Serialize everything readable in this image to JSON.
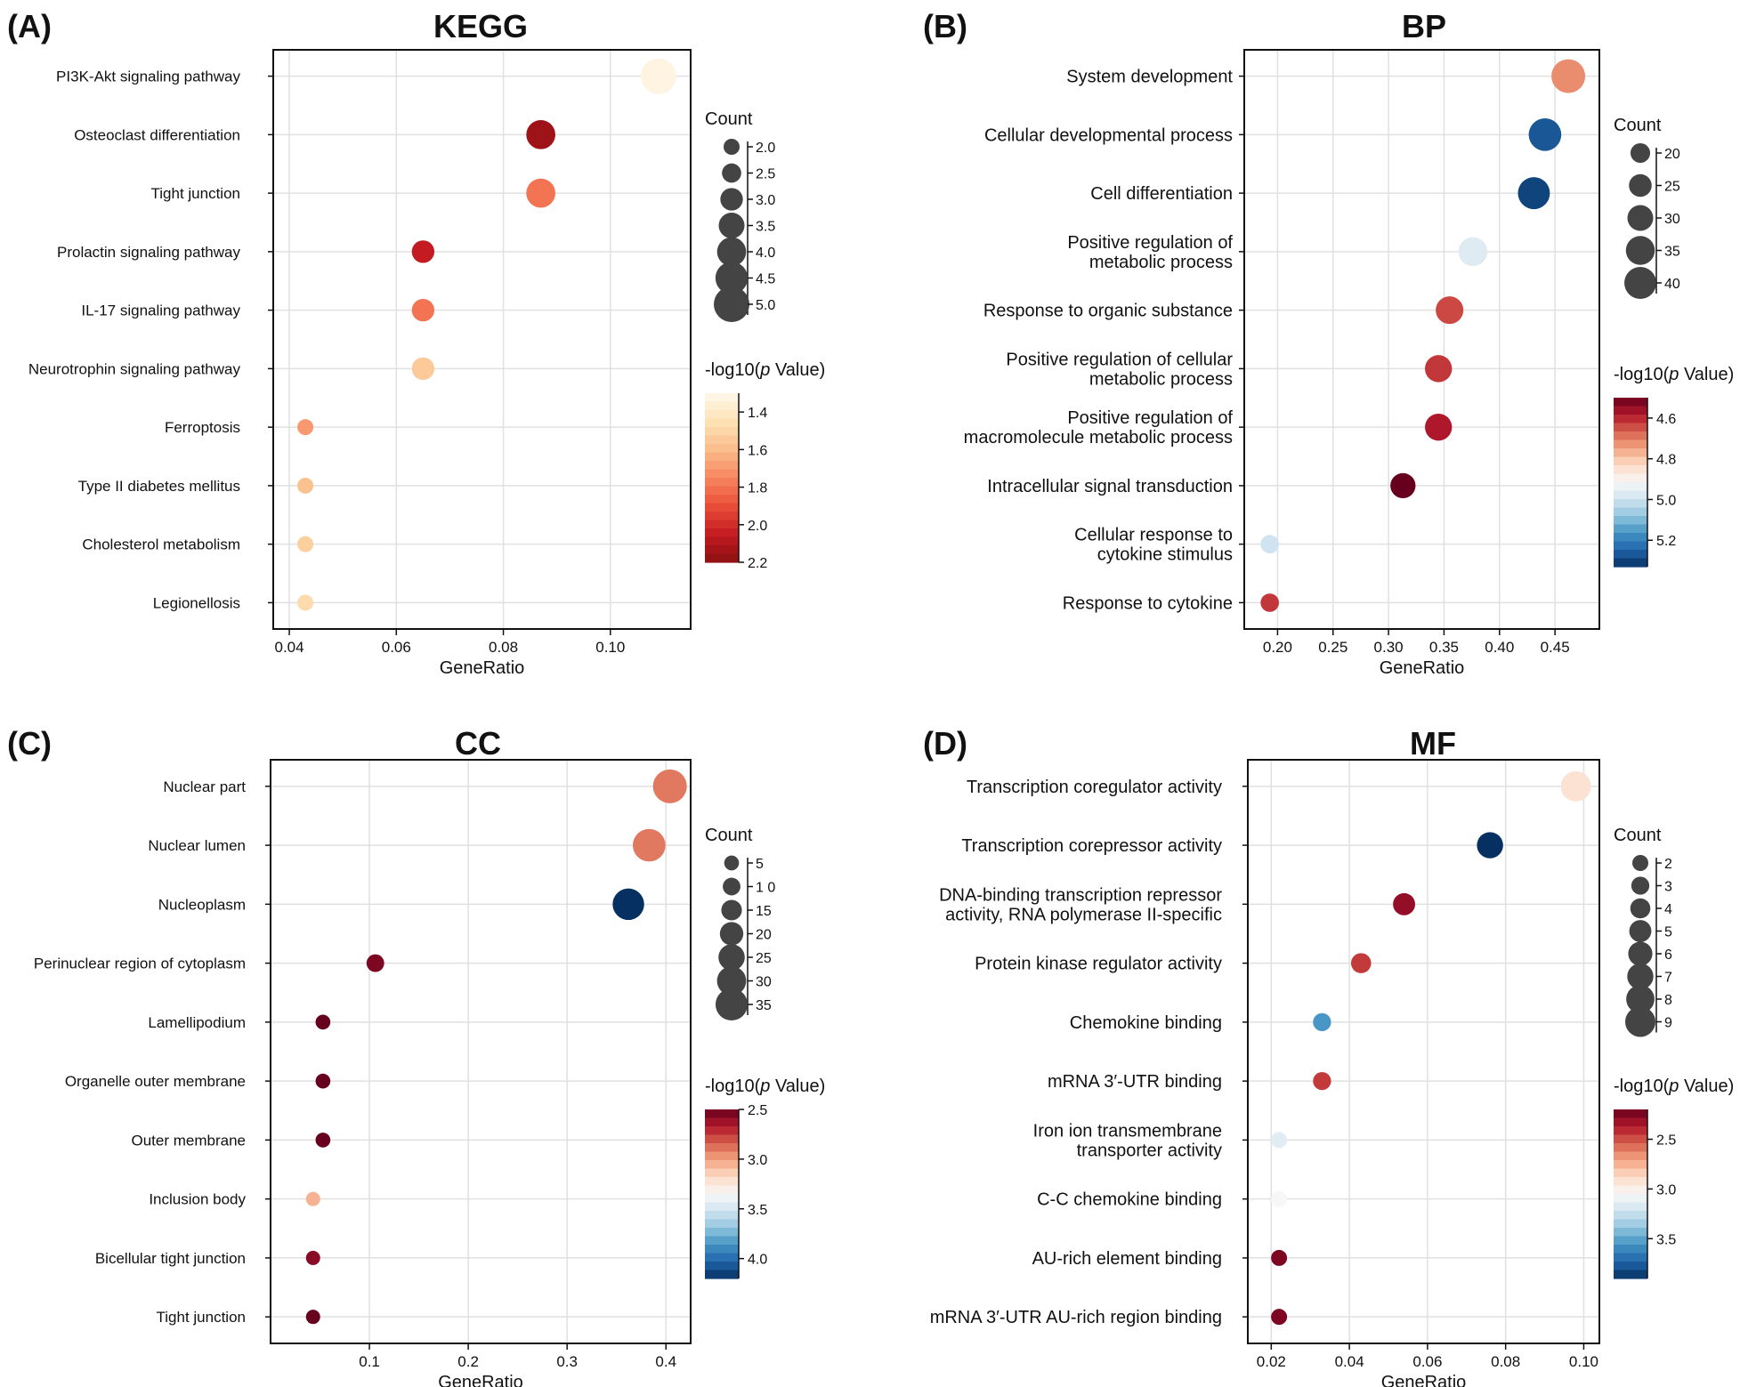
{
  "colors": {
    "diverging": [
      "#67001f",
      "#b2182b",
      "#d6604d",
      "#f4a582",
      "#fddbc7",
      "#f7f7f7",
      "#d1e5f0",
      "#92c5de",
      "#4393c3",
      "#2166ac",
      "#053061"
    ],
    "sequential": [
      "#fff8ec",
      "#fde3b5",
      "#fbbd8b",
      "#f6865f",
      "#ea4f37",
      "#c41b22",
      "#8b0f12"
    ],
    "bubble": "#444444"
  },
  "chart_data": [
    {
      "panel_label": "(A)",
      "type": "scatter",
      "title": "KEGG",
      "xlabel": "GeneRatio",
      "xlim": [
        0.037,
        0.115
      ],
      "xticks": [
        0.04,
        0.06,
        0.08,
        0.1
      ],
      "xtick_labels": [
        "0.04",
        "0.06",
        "0.08",
        "0.10"
      ],
      "size_title": "Count",
      "size_domain": [
        2,
        5
      ],
      "size_ticks": [
        2.0,
        2.5,
        3.0,
        3.5,
        4.0,
        4.5,
        5.0
      ],
      "size_tick_labels": [
        "2.0",
        "2.5",
        "3.0",
        "3.5",
        "4.0",
        "4.5",
        "5.0"
      ],
      "color_title_prefix": "-log10(",
      "color_title_italic": "p",
      "color_title_suffix": " Value)",
      "color_domain": [
        1.3,
        2.2
      ],
      "color_ticks": [
        1.4,
        1.6,
        1.8,
        2.0,
        2.2
      ],
      "color_tick_labels": [
        "1.4",
        "1.6",
        "1.8",
        "2.0",
        "2.2"
      ],
      "palette": "sequential",
      "reverse_palette": false,
      "categories": [
        "PI3K-Akt signaling pathway",
        "Osteoclast differentiation",
        "Tight junction",
        "Prolactin signaling pathway",
        "IL-17 signaling pathway",
        "Neurotrophin signaling pathway",
        "Ferroptosis",
        "Type II diabetes mellitus",
        "Cholesterol metabolism",
        "Legionellosis"
      ],
      "x": [
        0.109,
        0.087,
        0.087,
        0.065,
        0.065,
        0.065,
        0.043,
        0.043,
        0.043,
        0.043
      ],
      "count": [
        5,
        4,
        4,
        3,
        3,
        3,
        2,
        2,
        2,
        2
      ],
      "neglog10p": [
        1.33,
        2.15,
        1.8,
        2.05,
        1.8,
        1.55,
        1.7,
        1.58,
        1.53,
        1.48
      ]
    },
    {
      "panel_label": "(B)",
      "type": "scatter",
      "title": "BP",
      "xlabel": "GeneRatio",
      "xlim": [
        0.17,
        0.49
      ],
      "xticks": [
        0.2,
        0.25,
        0.3,
        0.35,
        0.4,
        0.45
      ],
      "xtick_labels": [
        "0.20",
        "0.25",
        "0.30",
        "0.35",
        "0.40",
        "0.45"
      ],
      "size_title": "Count",
      "size_domain": [
        17,
        43
      ],
      "size_ticks": [
        20,
        25,
        30,
        35,
        40
      ],
      "size_tick_labels": [
        "20",
        "25",
        "30",
        "35",
        "40"
      ],
      "color_title_prefix": "-log10(",
      "color_title_italic": "p",
      "color_title_suffix": " Value)",
      "color_domain": [
        4.5,
        5.33
      ],
      "color_ticks": [
        4.6,
        4.8,
        5.0,
        5.2
      ],
      "color_tick_labels": [
        "4.6",
        "4.8",
        "5.0",
        "5.2"
      ],
      "palette": "diverging",
      "reverse_palette": false,
      "categories": [
        "System development",
        "Cellular developmental process",
        "Cell differentiation",
        "Positive regulation of\nmetabolic process",
        "Response to organic substance",
        "Positive regulation of cellular\nmetabolic process",
        "Positive regulation of\nmacromolecule metabolic process",
        "Intracellular signal transduction",
        "Cellular response to\ncytokine stimulus",
        "Response to cytokine"
      ],
      "x": [
        0.462,
        0.441,
        0.431,
        0.376,
        0.355,
        0.345,
        0.345,
        0.313,
        0.193,
        0.193
      ],
      "count": [
        43,
        41,
        40,
        35,
        33,
        32,
        32,
        29,
        18,
        18
      ],
      "neglog10p": [
        4.72,
        5.27,
        5.3,
        4.97,
        4.64,
        4.62,
        4.58,
        4.5,
        5.0,
        4.62
      ]
    },
    {
      "panel_label": "(C)",
      "type": "scatter",
      "title": "CC",
      "xlabel": "GeneRatio",
      "xlim": [
        0.0,
        0.425
      ],
      "xticks": [
        0.1,
        0.2,
        0.3,
        0.4
      ],
      "xtick_labels": [
        "0.1",
        "0.2",
        "0.3",
        "0.4"
      ],
      "size_title": "Count",
      "size_domain": [
        4,
        38
      ],
      "size_ticks": [
        5,
        10,
        15,
        20,
        25,
        30,
        35
      ],
      "size_tick_labels": [
        "5",
        "1 0",
        "15",
        "20",
        "25",
        "30",
        "35"
      ],
      "color_title_prefix": "-log10(",
      "color_title_italic": "p",
      "color_title_suffix": " Value)",
      "color_domain": [
        2.5,
        4.2
      ],
      "color_ticks": [
        2.5,
        3.0,
        3.5,
        4.0
      ],
      "color_tick_labels": [
        "2.5",
        "3.0",
        "3.5",
        "4.0"
      ],
      "palette": "diverging",
      "reverse_palette": false,
      "categories": [
        "Nuclear part",
        "Nuclear lumen",
        "Nucleoplasm",
        "Perinuclear region of cytoplasm",
        "Lamellipodium",
        "Organelle outer membrane",
        "Outer membrane",
        "Inclusion body",
        "Bicellular tight junction",
        "Tight junction"
      ],
      "x": [
        0.404,
        0.383,
        0.362,
        0.106,
        0.053,
        0.053,
        0.053,
        0.043,
        0.043,
        0.043
      ],
      "count": [
        38,
        36,
        34,
        10,
        5,
        5,
        5,
        4,
        4,
        4
      ],
      "neglog10p": [
        2.9,
        2.9,
        4.2,
        2.55,
        2.5,
        2.5,
        2.5,
        3.05,
        2.58,
        2.5
      ]
    },
    {
      "panel_label": "(D)",
      "type": "scatter",
      "title": "MF",
      "xlabel": "GeneRatio",
      "xlim": [
        0.014,
        0.104
      ],
      "xticks": [
        0.02,
        0.04,
        0.06,
        0.08,
        0.1
      ],
      "xtick_labels": [
        "0.02",
        "0.04",
        "0.06",
        "0.08",
        "0.10"
      ],
      "size_title": "Count",
      "size_domain": [
        2,
        9
      ],
      "size_ticks": [
        2,
        3,
        4,
        5,
        6,
        7,
        8,
        9
      ],
      "size_tick_labels": [
        "2",
        "3",
        "4",
        "5",
        "6",
        "7",
        "8",
        "9"
      ],
      "color_title_prefix": "-log10(",
      "color_title_italic": "p",
      "color_title_suffix": " Value)",
      "color_domain": [
        2.2,
        3.9
      ],
      "color_ticks": [
        2.5,
        3.0,
        3.5
      ],
      "color_tick_labels": [
        "2.5",
        "3.0",
        "3.5"
      ],
      "palette": "diverging",
      "reverse_palette": false,
      "categories": [
        "Transcription coregulator activity",
        "Transcription corepressor activity",
        "DNA-binding transcription repressor\nactivity, RNA polymerase II-specific",
        "Protein kinase regulator activity",
        "Chemokine binding",
        "mRNA 3′-UTR binding",
        "Iron ion transmembrane\ntransporter activity",
        "C-C chemokine binding",
        "AU-rich element binding",
        "mRNA 3′-UTR AU-rich region binding"
      ],
      "x": [
        0.098,
        0.076,
        0.054,
        0.043,
        0.033,
        0.033,
        0.022,
        0.022,
        0.022,
        0.022
      ],
      "count": [
        9,
        7,
        5,
        4,
        3,
        3,
        2,
        2,
        2,
        2
      ],
      "neglog10p": [
        2.92,
        3.9,
        2.3,
        2.45,
        3.55,
        2.45,
        3.15,
        3.05,
        2.25,
        2.25
      ]
    }
  ]
}
